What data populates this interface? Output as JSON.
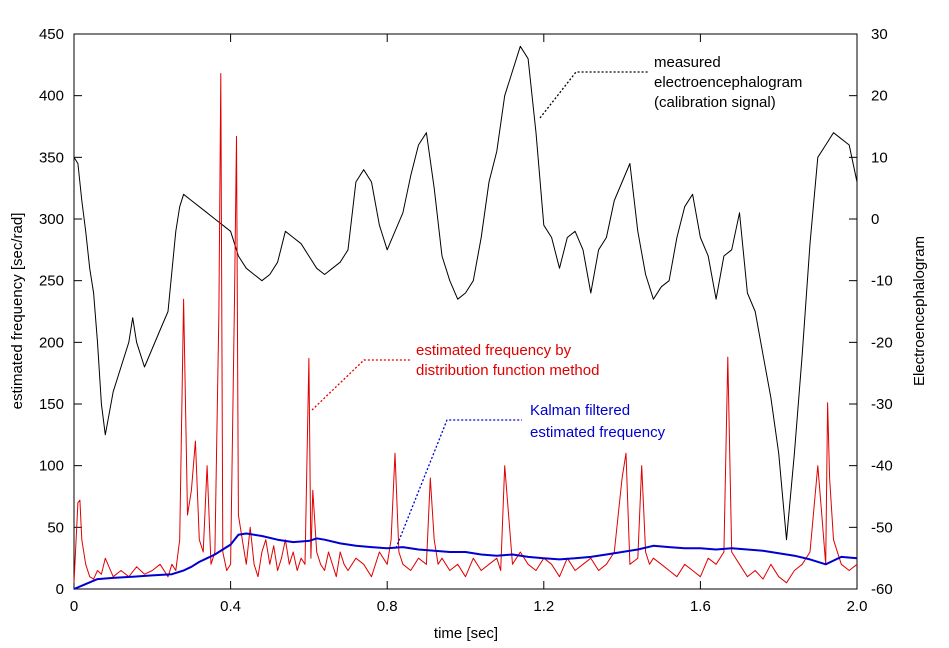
{
  "chart_data": {
    "type": "line",
    "xlabel": "time [sec]",
    "ylabel": "estimated frequency [sec/rad]",
    "y2label": "Electroencephalogram",
    "xlim": [
      0,
      2.0
    ],
    "ylim": [
      0,
      450
    ],
    "y2lim": [
      -60,
      30
    ],
    "x_ticks": [
      "0",
      "0.4",
      "0.8",
      "1.2",
      "1.6",
      "2.0"
    ],
    "y_ticks": [
      "0",
      "50",
      "100",
      "150",
      "200",
      "250",
      "300",
      "350",
      "400",
      "450"
    ],
    "y2_ticks": [
      "-60",
      "-50",
      "-40",
      "-30",
      "-20",
      "-10",
      "0",
      "10",
      "20",
      "30"
    ],
    "grid": false,
    "series": [
      {
        "name": "measured electroencephalogram (calibration signal)",
        "axis": "right",
        "color": "#000000",
        "x": [
          0.0,
          0.01,
          0.02,
          0.03,
          0.04,
          0.05,
          0.06,
          0.07,
          0.08,
          0.1,
          0.12,
          0.14,
          0.15,
          0.16,
          0.18,
          0.2,
          0.22,
          0.24,
          0.26,
          0.27,
          0.28,
          0.3,
          0.32,
          0.34,
          0.36,
          0.38,
          0.4,
          0.42,
          0.44,
          0.46,
          0.48,
          0.5,
          0.52,
          0.54,
          0.56,
          0.58,
          0.6,
          0.62,
          0.64,
          0.66,
          0.68,
          0.7,
          0.72,
          0.74,
          0.76,
          0.78,
          0.8,
          0.82,
          0.84,
          0.86,
          0.88,
          0.9,
          0.92,
          0.94,
          0.96,
          0.98,
          1.0,
          1.02,
          1.04,
          1.06,
          1.08,
          1.1,
          1.12,
          1.14,
          1.16,
          1.18,
          1.2,
          1.22,
          1.24,
          1.26,
          1.28,
          1.3,
          1.32,
          1.34,
          1.36,
          1.38,
          1.4,
          1.42,
          1.44,
          1.46,
          1.48,
          1.5,
          1.52,
          1.54,
          1.56,
          1.58,
          1.6,
          1.62,
          1.64,
          1.66,
          1.68,
          1.7,
          1.72,
          1.74,
          1.76,
          1.78,
          1.8,
          1.82,
          1.84,
          1.86,
          1.88,
          1.9,
          1.92,
          1.94,
          1.96,
          1.98,
          2.0
        ],
        "y": [
          10,
          9,
          3,
          -2,
          -8,
          -12,
          -20,
          -30,
          -35,
          -28,
          -24,
          -20,
          -16,
          -20,
          -24,
          -21,
          -18,
          -15,
          -2,
          2,
          4,
          3,
          2,
          1,
          0,
          -1,
          -2,
          -6,
          -8,
          -9,
          -10,
          -9,
          -7,
          -2,
          -3,
          -4,
          -6,
          -8,
          -9,
          -8,
          -7,
          -5,
          6,
          8,
          6,
          -1,
          -5,
          -2,
          1,
          7,
          12,
          14,
          5,
          -6,
          -10,
          -13,
          -12,
          -10,
          -3,
          6,
          11,
          20,
          24,
          28,
          26,
          14,
          -1,
          -3,
          -8,
          -3,
          -2,
          -5,
          -12,
          -5,
          -3,
          3,
          6,
          9,
          -2,
          -9,
          -13,
          -11,
          -10,
          -3,
          2,
          4,
          -3,
          -6,
          -13,
          -6,
          -5,
          1,
          -12,
          -15,
          -22,
          -29,
          -38,
          -52,
          -38,
          -22,
          -4,
          10,
          12,
          14,
          13,
          12,
          6
        ]
      },
      {
        "name": "estimated frequency by distribution function method",
        "axis": "left",
        "color": "#e00000",
        "x": [
          0.0,
          0.01,
          0.015,
          0.02,
          0.03,
          0.04,
          0.05,
          0.06,
          0.07,
          0.08,
          0.1,
          0.12,
          0.14,
          0.16,
          0.18,
          0.2,
          0.22,
          0.24,
          0.25,
          0.26,
          0.27,
          0.28,
          0.29,
          0.3,
          0.31,
          0.32,
          0.33,
          0.34,
          0.35,
          0.36,
          0.37,
          0.375,
          0.38,
          0.39,
          0.4,
          0.41,
          0.415,
          0.42,
          0.43,
          0.44,
          0.45,
          0.46,
          0.47,
          0.48,
          0.49,
          0.5,
          0.51,
          0.52,
          0.53,
          0.54,
          0.55,
          0.56,
          0.57,
          0.58,
          0.59,
          0.6,
          0.605,
          0.61,
          0.62,
          0.63,
          0.64,
          0.65,
          0.66,
          0.67,
          0.68,
          0.69,
          0.7,
          0.72,
          0.74,
          0.76,
          0.78,
          0.8,
          0.81,
          0.82,
          0.83,
          0.84,
          0.86,
          0.88,
          0.9,
          0.91,
          0.92,
          0.93,
          0.94,
          0.96,
          0.98,
          1.0,
          1.02,
          1.04,
          1.06,
          1.08,
          1.09,
          1.1,
          1.12,
          1.14,
          1.16,
          1.18,
          1.2,
          1.22,
          1.24,
          1.26,
          1.28,
          1.3,
          1.32,
          1.34,
          1.36,
          1.38,
          1.39,
          1.4,
          1.41,
          1.42,
          1.44,
          1.45,
          1.46,
          1.47,
          1.48,
          1.5,
          1.52,
          1.54,
          1.56,
          1.58,
          1.6,
          1.62,
          1.64,
          1.66,
          1.67,
          1.68,
          1.7,
          1.72,
          1.74,
          1.76,
          1.78,
          1.8,
          1.82,
          1.84,
          1.86,
          1.88,
          1.9,
          1.91,
          1.92,
          1.925,
          1.93,
          1.94,
          1.96,
          1.98,
          2.0
        ],
        "y": [
          5,
          70,
          72,
          40,
          20,
          10,
          8,
          15,
          12,
          25,
          10,
          15,
          10,
          18,
          12,
          15,
          20,
          10,
          20,
          15,
          40,
          235,
          60,
          80,
          120,
          40,
          30,
          100,
          20,
          30,
          225,
          418,
          30,
          15,
          20,
          235,
          367,
          60,
          40,
          20,
          50,
          20,
          10,
          30,
          40,
          20,
          35,
          15,
          25,
          40,
          20,
          30,
          15,
          25,
          20,
          187,
          25,
          80,
          30,
          20,
          15,
          30,
          20,
          10,
          30,
          20,
          15,
          25,
          20,
          10,
          30,
          20,
          40,
          110,
          30,
          20,
          15,
          25,
          20,
          90,
          40,
          20,
          25,
          15,
          20,
          10,
          25,
          15,
          20,
          25,
          15,
          100,
          20,
          30,
          20,
          15,
          25,
          20,
          10,
          25,
          15,
          20,
          25,
          15,
          20,
          30,
          60,
          90,
          110,
          20,
          25,
          100,
          30,
          20,
          25,
          20,
          15,
          10,
          20,
          15,
          10,
          25,
          20,
          30,
          188,
          30,
          20,
          10,
          15,
          8,
          20,
          10,
          5,
          15,
          20,
          30,
          100,
          60,
          20,
          151,
          90,
          40,
          20,
          15,
          20
        ]
      },
      {
        "name": "Kalman filtered estimated frequency",
        "axis": "left",
        "color": "#0000d0",
        "x": [
          0.0,
          0.03,
          0.06,
          0.1,
          0.15,
          0.2,
          0.25,
          0.28,
          0.3,
          0.32,
          0.34,
          0.36,
          0.38,
          0.4,
          0.42,
          0.44,
          0.48,
          0.52,
          0.56,
          0.6,
          0.62,
          0.64,
          0.68,
          0.72,
          0.76,
          0.8,
          0.84,
          0.88,
          0.92,
          0.96,
          1.0,
          1.04,
          1.08,
          1.12,
          1.16,
          1.2,
          1.24,
          1.28,
          1.32,
          1.36,
          1.4,
          1.44,
          1.48,
          1.52,
          1.56,
          1.6,
          1.64,
          1.68,
          1.72,
          1.76,
          1.8,
          1.84,
          1.88,
          1.92,
          1.96,
          2.0
        ],
        "y": [
          0,
          4,
          8,
          9,
          10,
          11,
          12,
          15,
          18,
          22,
          25,
          28,
          32,
          36,
          44,
          45,
          43,
          40,
          38,
          39,
          41,
          40,
          37,
          35,
          34,
          33,
          34,
          32,
          31,
          30,
          30,
          28,
          27,
          28,
          26,
          25,
          24,
          25,
          26,
          28,
          30,
          32,
          35,
          34,
          33,
          33,
          32,
          33,
          32,
          31,
          29,
          27,
          24,
          20,
          26,
          25
        ]
      }
    ],
    "annotations": [
      {
        "lines": [
          "measured",
          "electroencephalogram",
          "(calibration signal)"
        ],
        "color": "#000000"
      },
      {
        "lines": [
          "estimated frequency by",
          "distribution function method"
        ],
        "color": "#e00000"
      },
      {
        "lines": [
          "Kalman filtered",
          "estimated frequency"
        ],
        "color": "#0000d0"
      }
    ]
  }
}
